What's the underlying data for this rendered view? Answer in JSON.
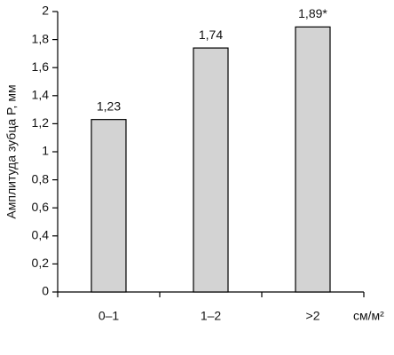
{
  "chart_data": {
    "type": "bar",
    "y_label": "Амплитуда зубца P, мм",
    "x_unit": "см/м²",
    "categories": [
      "0–1",
      "1–2",
      ">2"
    ],
    "values": [
      1.23,
      1.74,
      1.89
    ],
    "value_labels": [
      "1,23",
      "1,74",
      "1,89*"
    ],
    "color": "#d3d3d3",
    "ylim": [
      0,
      2
    ],
    "yticks": [
      0,
      {
        "value": 0.2,
        "label": "0,2"
      },
      {
        "value": 0.4,
        "label": "0,4"
      },
      {
        "value": 0.6,
        "label": "0,6"
      },
      {
        "value": 0.8,
        "label": "0,8"
      },
      1,
      {
        "value": 1.2,
        "label": "1,2"
      },
      {
        "value": 1.4,
        "label": "1,4"
      },
      {
        "value": 1.6,
        "label": "1,6"
      },
      {
        "value": 1.8,
        "label": "1,8"
      },
      2
    ],
    "grid": false
  }
}
